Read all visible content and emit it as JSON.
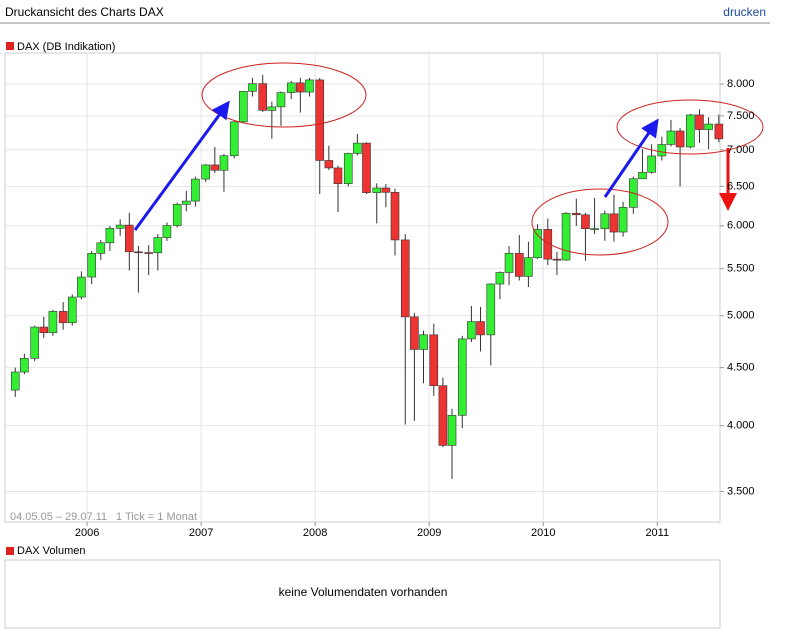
{
  "header": {
    "title": "Druckansicht des Charts DAX",
    "print_link": "drucken"
  },
  "chart_data": {
    "type": "candlestick",
    "series_name": "DAX (DB Indikation)",
    "range_note": "04.05.05 – 29.07.11",
    "tick_note": "1 Tick = 1 Monat",
    "up_color": "#33ee33",
    "down_color": "#ee3333",
    "legend_color": "#dd2222",
    "x": [
      2005.37,
      2005.45,
      2005.54,
      2005.62,
      2005.7,
      2005.79,
      2005.87,
      2005.95,
      2006.04,
      2006.12,
      2006.2,
      2006.29,
      2006.37,
      2006.45,
      2006.54,
      2006.62,
      2006.7,
      2006.79,
      2006.87,
      2006.95,
      2007.04,
      2007.12,
      2007.2,
      2007.29,
      2007.37,
      2007.45,
      2007.54,
      2007.62,
      2007.7,
      2007.79,
      2007.87,
      2007.95,
      2008.04,
      2008.12,
      2008.2,
      2008.29,
      2008.37,
      2008.45,
      2008.54,
      2008.62,
      2008.7,
      2008.79,
      2008.87,
      2008.95,
      2009.04,
      2009.12,
      2009.2,
      2009.29,
      2009.37,
      2009.45,
      2009.54,
      2009.62,
      2009.7,
      2009.79,
      2009.87,
      2009.95,
      2010.04,
      2010.12,
      2010.2,
      2010.29,
      2010.37,
      2010.45,
      2010.54,
      2010.62,
      2010.7,
      2010.79,
      2010.87,
      2010.95,
      2011.04,
      2011.12,
      2011.2,
      2011.29,
      2011.37,
      2011.45,
      2011.54
    ],
    "open": [
      4300,
      4460,
      4586,
      4886,
      4830,
      5044,
      4929,
      5193,
      5408,
      5674,
      5797,
      5970,
      6009,
      5692,
      5683,
      5681,
      5859,
      6004,
      6268,
      6309,
      6597,
      6789,
      6716,
      6917,
      7409,
      7883,
      8007,
      7584,
      7638,
      7862,
      8019,
      7871,
      8067,
      6851,
      6748,
      6535,
      6949,
      7096,
      6418,
      6479,
      6422,
      5831,
      4988,
      4669,
      4810,
      4338,
      3843,
      4085,
      4770,
      4941,
      4809,
      5332,
      5458,
      5675,
      5415,
      5625,
      5957,
      5608,
      5598,
      6154,
      6136,
      5965,
      5966,
      6148,
      5925,
      6229,
      6601,
      6688,
      6914,
      7077,
      7273,
      7041,
      7514,
      7294,
      7376
    ],
    "high": [
      4500,
      4630,
      4900,
      4990,
      5060,
      5140,
      5220,
      5470,
      5700,
      5830,
      6000,
      6080,
      6160,
      5760,
      5770,
      5900,
      6040,
      6290,
      6440,
      6630,
      6800,
      7040,
      6940,
      7420,
      7890,
      8100,
      8150,
      7720,
      7880,
      8050,
      8100,
      8100,
      8100,
      7060,
      6780,
      6960,
      7230,
      7110,
      6540,
      6530,
      6470,
      5900,
      5030,
      4850,
      4920,
      4410,
      4140,
      4800,
      5100,
      5090,
      5340,
      5470,
      5760,
      5890,
      5810,
      6020,
      6090,
      5690,
      6170,
      6340,
      6160,
      6350,
      6190,
      6390,
      6300,
      6630,
      7010,
      7080,
      7190,
      7440,
      7320,
      7530,
      7600,
      7480,
      7520
    ],
    "low": [
      4240,
      4440,
      4560,
      4780,
      4800,
      4860,
      4900,
      5170,
      5330,
      5600,
      5700,
      5880,
      5480,
      5240,
      5430,
      5480,
      5820,
      5980,
      6180,
      6240,
      6560,
      6680,
      6430,
      6880,
      7390,
      7800,
      7560,
      7160,
      7350,
      7760,
      7550,
      7800,
      6400,
      6720,
      6170,
      6500,
      6920,
      6400,
      6030,
      6230,
      5650,
      4010,
      4040,
      4360,
      4250,
      3830,
      3590,
      3980,
      4740,
      4650,
      4520,
      5170,
      5320,
      5370,
      5300,
      5610,
      5540,
      5430,
      5590,
      6000,
      5590,
      5900,
      5820,
      5810,
      5870,
      6150,
      6600,
      6670,
      6850,
      7050,
      6500,
      7020,
      7100,
      7010,
      7110
    ],
    "close": [
      4460,
      4586,
      4886,
      4830,
      5044,
      4929,
      5193,
      5408,
      5674,
      5797,
      5970,
      6009,
      5692,
      5683,
      5681,
      5859,
      6004,
      6268,
      6309,
      6597,
      6789,
      6716,
      6917,
      7409,
      7883,
      8007,
      7584,
      7638,
      7862,
      8019,
      7871,
      8067,
      6851,
      6748,
      6535,
      6949,
      7096,
      6418,
      6479,
      6422,
      5831,
      4988,
      4669,
      4810,
      4338,
      3843,
      4085,
      4770,
      4941,
      4809,
      5332,
      5458,
      5675,
      5415,
      5625,
      5957,
      5608,
      5598,
      6154,
      6136,
      5965,
      5966,
      6148,
      5925,
      6229,
      6601,
      6688,
      6914,
      7077,
      7273,
      7041,
      7514,
      7294,
      7376,
      7158
    ],
    "xlim": [
      2005.28,
      2011.55
    ],
    "xticks": [
      2006,
      2007,
      2008,
      2009,
      2010,
      2011
    ],
    "ylim": [
      3290,
      8520
    ],
    "log_y": true,
    "grid": true,
    "yticks": [
      {
        "value": 3500,
        "label": "3.500"
      },
      {
        "value": 4000,
        "label": "4.000"
      },
      {
        "value": 4500,
        "label": "4.500"
      },
      {
        "value": 5000,
        "label": "5.000"
      },
      {
        "value": 5500,
        "label": "5.500"
      },
      {
        "value": 6000,
        "label": "6.000"
      },
      {
        "value": 6500,
        "label": "6.500"
      },
      {
        "value": 7000,
        "label": "7.000"
      },
      {
        "value": 7500,
        "label": "7.500"
      },
      {
        "value": 8000,
        "label": "8.000"
      }
    ]
  },
  "volume": {
    "title": "DAX Volumen",
    "message": "keine Volumendaten vorhanden"
  }
}
